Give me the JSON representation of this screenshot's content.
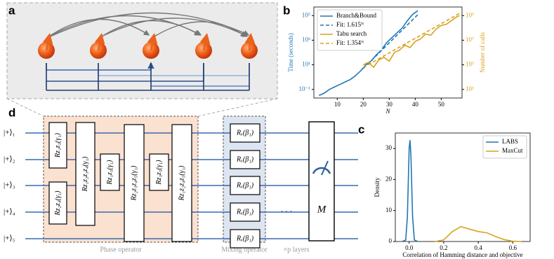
{
  "panels": {
    "a": "a",
    "b": "b",
    "c": "c",
    "d": "d"
  },
  "chart_data": [
    {
      "type": "line",
      "x_label": "N",
      "y_label": "Time (seconds)",
      "y2_label": "Number of calls",
      "xlim": [
        1,
        58
      ],
      "xticks": [
        10,
        20,
        30,
        40,
        50
      ],
      "yscale": "log",
      "ylim": [
        0.02,
        500000
      ],
      "yticks": [
        {
          "value": 0.1,
          "label": "10⁻¹"
        },
        {
          "value": 10,
          "label": "10¹"
        },
        {
          "value": 1000,
          "label": "10³"
        },
        {
          "value": 100000,
          "label": "10⁵"
        }
      ],
      "y2scale": "log",
      "y2lim": [
        200,
        5000000000
      ],
      "y2ticks": [
        {
          "value": 1000,
          "label": "10³"
        },
        {
          "value": 100000,
          "label": "10⁵"
        },
        {
          "value": 10000000,
          "label": "10⁷"
        },
        {
          "value": 1000000000,
          "label": "10⁹"
        }
      ],
      "legend": "upper left",
      "series": [
        {
          "name": "Branch&Bound",
          "color": "#1f77b4",
          "style": "solid",
          "x": [
            3,
            5,
            7,
            9,
            11,
            13,
            15,
            17,
            19,
            21,
            23,
            25,
            27,
            29,
            31,
            33,
            35,
            37,
            39,
            41
          ],
          "values": [
            0.032,
            0.05,
            0.1,
            0.16,
            0.25,
            0.4,
            0.63,
            1.3,
            3.2,
            10,
            20,
            63,
            160,
            630,
            1600,
            4000,
            10000,
            40000,
            126000,
            250000
          ]
        },
        {
          "name": "Fit: 1.615ᴺ",
          "color": "#1f77b4",
          "style": "dashed",
          "x": [
            20,
            41
          ],
          "values": [
            5,
            120000
          ]
        },
        {
          "name": "Tabu search",
          "color": "#d9a21b",
          "style": "solid",
          "axis": "y2",
          "x": [
            20,
            22,
            24,
            26,
            28,
            30,
            32,
            34,
            36,
            38,
            40,
            42,
            44,
            46,
            48,
            50,
            52,
            54,
            56,
            57
          ],
          "values": [
            100000,
            158000,
            63000,
            251000,
            398000,
            200000,
            1000000,
            1580000,
            3980000,
            2510000,
            7940000,
            12600000,
            31600000,
            25100000,
            79400000,
            158000000,
            200000000,
            398000000,
            794000000,
            1000000000
          ]
        },
        {
          "name": "Fit: 1.354ᴺ",
          "color": "#d9a21b",
          "style": "dashed",
          "axis": "y2",
          "x": [
            20,
            57
          ],
          "values": [
            60000,
            1500000000
          ]
        }
      ]
    },
    {
      "type": "line",
      "x_label": "Correlation of Hamming distance and objective",
      "y_label": "Density",
      "xlim": [
        -0.08,
        0.7
      ],
      "xticks": [
        {
          "value": 0,
          "label": "0.0"
        },
        {
          "value": 0.2,
          "label": "0.2"
        },
        {
          "value": 0.4,
          "label": "0.4"
        },
        {
          "value": 0.6,
          "label": "0.6"
        }
      ],
      "ylim": [
        0,
        35
      ],
      "yticks": [
        0,
        10,
        20,
        30
      ],
      "legend": "upper right",
      "series": [
        {
          "name": "LABS",
          "color": "#1f77b4",
          "style": "solid",
          "x": [
            -0.04,
            -0.02,
            -0.01,
            0,
            0.005,
            0.01,
            0.02,
            0.03,
            0.05
          ],
          "values": [
            0,
            0.5,
            8,
            30,
            32.7,
            28,
            8,
            0.5,
            0
          ]
        },
        {
          "name": "MaxCut",
          "color": "#d9a21b",
          "style": "solid",
          "x": [
            0.15,
            0.2,
            0.25,
            0.3,
            0.35,
            0.4,
            0.45,
            0.5,
            0.55,
            0.6,
            0.65
          ],
          "values": [
            0,
            0.5,
            3.2,
            4.8,
            4.0,
            3.2,
            2.8,
            1.6,
            0.6,
            0.1,
            0
          ]
        }
      ]
    }
  ],
  "circuit": {
    "inputs": [
      "|+⟩₁",
      "|+⟩₂",
      "|+⟩₃",
      "|+⟩₄",
      "|+⟩₅"
    ],
    "phase_gates": [
      "Rz₁z₃(γ₁)",
      "Rz₂z₄(γ₁)",
      "Rz₁z₂z₃z₄(γ₁)",
      "Rz₁z₅(γ₁)",
      "Rz₂z₃z₄z₅(γ₁)",
      "Rz₃z₅(γ₁)",
      "Rz₁z₂z₄z₅(γ₁)"
    ],
    "mixing_gates": [
      "Rₓ(β₁)",
      "Rₓ(β₁)",
      "Rₓ(β₁)",
      "Rₓ(β₁)",
      "Rₓ(β₁)"
    ],
    "ellipsis": "· · ·",
    "measurement": "M",
    "phase_label": "Phase operator",
    "mixing_label": "Mixing operator",
    "layers_label": "×p layers"
  }
}
